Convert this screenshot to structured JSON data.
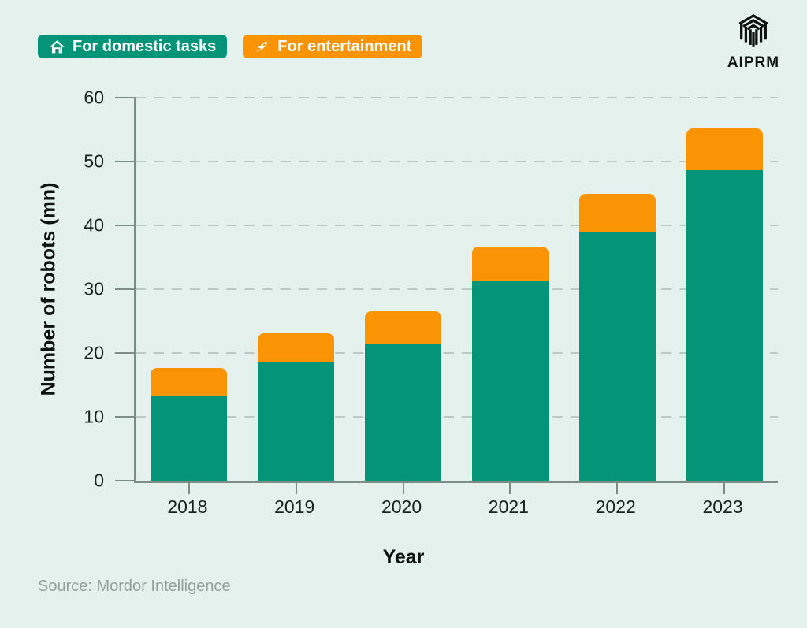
{
  "page": {
    "background": "#e5f1ed"
  },
  "legend": {
    "items": [
      {
        "label": "For domestic tasks",
        "color": "#049579",
        "icon": "house-icon"
      },
      {
        "label": "For entertainment",
        "color": "#fa9405",
        "icon": "rocket-icon"
      }
    ]
  },
  "logo": {
    "text": "AIPRM"
  },
  "chart_data": {
    "type": "bar",
    "stacked": true,
    "categories": [
      "2018",
      "2019",
      "2020",
      "2021",
      "2022",
      "2023"
    ],
    "series": [
      {
        "name": "For domestic tasks",
        "color": "#049579",
        "values": [
          13.2,
          18.6,
          21.5,
          31.2,
          39.0,
          48.6
        ]
      },
      {
        "name": "For entertainment",
        "color": "#fa9405",
        "values": [
          4.4,
          4.5,
          5.0,
          5.5,
          6.0,
          6.6
        ]
      }
    ],
    "totals": [
      17.6,
      23.1,
      26.5,
      36.7,
      45.0,
      55.2
    ],
    "title": "",
    "xlabel": "Year",
    "ylabel": "Number of robots (mn)",
    "ylim": [
      0,
      60
    ],
    "yticks": [
      0,
      10,
      20,
      30,
      40,
      50,
      60
    ],
    "grid": "horizontal-dashed",
    "legend_position": "top-left"
  },
  "footer": {
    "source": "Source: Mordor Intelligence"
  }
}
